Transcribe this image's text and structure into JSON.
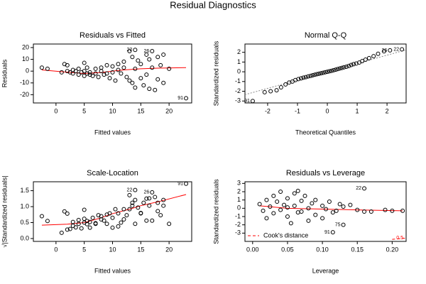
{
  "title": "Residual Diagnostics",
  "chart_data": [
    {
      "type": "scatter",
      "title": "Residuals vs Fitted",
      "x_label": "Fitted values",
      "y_label": "Residuals",
      "xlim": [
        -4,
        24
      ],
      "ylim": [
        -27,
        23
      ],
      "xticks": [
        0,
        5,
        10,
        15,
        20
      ],
      "yticks": [
        -20,
        -10,
        0,
        10,
        20
      ],
      "series": [
        {
          "color": "#000000",
          "x": [
            -2.5,
            -1.5,
            1,
            1.5,
            2,
            2,
            2.5,
            3,
            3,
            3.5,
            4,
            4,
            4.5,
            5,
            5,
            5,
            5.5,
            5.5,
            6,
            6,
            6.5,
            7,
            7,
            7.5,
            8,
            8,
            8.5,
            9,
            9,
            9.5,
            10,
            10,
            10.5,
            11,
            11,
            11.5,
            12,
            12,
            12.5,
            13,
            13,
            13.5,
            13.5,
            14,
            14,
            14,
            14.5,
            15,
            15,
            15.5,
            16,
            16,
            16.5,
            16.5,
            17,
            17,
            17.5,
            18,
            18,
            18.5,
            19,
            19,
            20,
            23
          ],
          "values": [
            3,
            2,
            -1,
            6,
            5,
            0,
            -1,
            1,
            -2,
            0,
            -3,
            2,
            -1,
            -4,
            0,
            7,
            -2,
            3,
            -3,
            -1,
            -4,
            2,
            -2,
            -5,
            0,
            3,
            -3,
            -2,
            5,
            -6,
            4,
            -1,
            -8,
            1,
            6,
            -2,
            3,
            8,
            -5,
            17,
            -8,
            12,
            -10,
            18,
            2,
            -14,
            9,
            6,
            -6,
            -12,
            14,
            -3,
            10,
            -15,
            17,
            3,
            -16,
            12,
            -7,
            5,
            14,
            -10,
            2,
            -23
          ]
        }
      ],
      "lines": [
        {
          "color": "#ff0000",
          "dash": "none",
          "x": [
            -2.5,
            1,
            5,
            8,
            10,
            12,
            15,
            18,
            23
          ],
          "values": [
            1,
            -0.5,
            -2,
            -1.2,
            0,
            1,
            2,
            2.5,
            3
          ]
        }
      ],
      "annotations": [
        {
          "text": "22",
          "x": 14,
          "y": 18
        },
        {
          "text": "26",
          "x": 17,
          "y": 17
        },
        {
          "text": "91",
          "x": 23,
          "y": -23
        }
      ]
    },
    {
      "type": "scatter",
      "title": "Normal Q-Q",
      "x_label": "Theoretical Quantiles",
      "y_label": "Standardized residuals",
      "xlim": [
        -2.76,
        2.64
      ],
      "ylim": [
        -3.2,
        2.85
      ],
      "xticks": [
        -2,
        -1,
        0,
        1,
        2
      ],
      "yticks": [
        -3,
        -2,
        -1,
        0,
        1,
        2
      ],
      "series": [
        {
          "color": "#000000",
          "x": [
            -2.5,
            -2.1,
            -1.9,
            -1.7,
            -1.55,
            -1.4,
            -1.28,
            -1.17,
            -1.07,
            -0.97,
            -0.88,
            -0.8,
            -0.72,
            -0.64,
            -0.56,
            -0.49,
            -0.42,
            -0.35,
            -0.28,
            -0.21,
            -0.14,
            -0.07,
            0,
            0.07,
            0.14,
            0.21,
            0.28,
            0.35,
            0.42,
            0.49,
            0.56,
            0.64,
            0.72,
            0.8,
            0.88,
            0.97,
            1.07,
            1.17,
            1.28,
            1.4,
            1.55,
            1.7,
            1.9,
            2.1,
            2.5
          ],
          "values": [
            -3.0,
            -2.1,
            -2.0,
            -1.9,
            -1.6,
            -1.3,
            -1.1,
            -1.0,
            -0.85,
            -0.75,
            -0.68,
            -0.6,
            -0.55,
            -0.48,
            -0.42,
            -0.36,
            -0.3,
            -0.25,
            -0.2,
            -0.15,
            -0.1,
            -0.05,
            0,
            0.05,
            0.1,
            0.16,
            0.22,
            0.28,
            0.34,
            0.4,
            0.46,
            0.52,
            0.6,
            0.7,
            0.78,
            0.85,
            0.95,
            1.1,
            1.25,
            1.4,
            1.6,
            1.85,
            2.1,
            2.2,
            2.3
          ]
        }
      ],
      "lines": [
        {
          "color": "#888888",
          "dash": "2,2",
          "x": [
            -2.76,
            2.64
          ],
          "values": [
            -2.35,
            2.25
          ]
        }
      ],
      "annotations": [
        {
          "text": "91",
          "x": -2.5,
          "y": -3.0
        },
        {
          "text": "22",
          "x": 2.5,
          "y": 2.3
        },
        {
          "text": "26",
          "x": 2.1,
          "y": 2.2
        }
      ]
    },
    {
      "type": "scatter",
      "title": "Scale-Location",
      "x_label": "Fitted values",
      "y_label": "√|Standardized residuals|",
      "xlim": [
        -4,
        24
      ],
      "ylim": [
        -0.09,
        1.78
      ],
      "xticks": [
        0,
        5,
        10,
        15,
        20
      ],
      "yticks": [
        {
          "value": 0,
          "label": "0.0"
        },
        {
          "value": 0.5,
          "label": "0.5"
        },
        {
          "value": 1,
          "label": "1.0"
        },
        {
          "value": 1.5,
          "label": "1.5"
        }
      ],
      "series": [
        {
          "color": "#000000",
          "x": [
            -2.5,
            -1.5,
            1,
            1.5,
            2,
            2,
            2.5,
            3,
            3,
            3.5,
            4,
            4,
            4.5,
            5,
            5,
            5,
            5.5,
            5.5,
            6,
            6,
            6.5,
            7,
            7,
            7.5,
            8,
            8,
            8.5,
            9,
            9,
            9.5,
            10,
            10,
            10.5,
            11,
            11,
            11.5,
            12,
            12,
            12.5,
            13,
            13,
            13.5,
            13.5,
            14,
            14,
            14,
            14.5,
            15,
            15,
            15.5,
            16,
            16,
            16.5,
            16.5,
            17,
            17,
            17.5,
            18,
            18,
            18.5,
            19,
            19,
            20,
            23
          ],
          "values": [
            0.7,
            0.55,
            0.18,
            0.85,
            0.78,
            0.28,
            0.3,
            0.52,
            0.4,
            0.35,
            0.58,
            0.46,
            0.32,
            0.62,
            0.5,
            0.9,
            0.45,
            0.55,
            0.52,
            0.34,
            0.65,
            0.46,
            0.48,
            0.73,
            0.7,
            0.6,
            0.56,
            0.46,
            0.75,
            0.79,
            0.65,
            0.34,
            0.92,
            0.38,
            0.79,
            0.5,
            0.6,
            0.92,
            0.73,
            1.36,
            0.92,
            1.12,
            1.03,
            1.52,
            0.46,
            1.21,
            0.97,
            0.79,
            0.8,
            1.12,
            1.25,
            0.56,
            1.03,
            1.26,
            1.45,
            0.56,
            1.3,
            1.12,
            0.86,
            0.73,
            1.21,
            1.03,
            0.46,
            1.72
          ]
        }
      ],
      "lines": [
        {
          "color": "#ff0000",
          "dash": "none",
          "x": [
            -2.5,
            2,
            5,
            8,
            10,
            13,
            15,
            18,
            23
          ],
          "values": [
            0.42,
            0.45,
            0.5,
            0.65,
            0.78,
            0.92,
            1.03,
            1.15,
            1.38
          ]
        }
      ],
      "annotations": [
        {
          "text": "22",
          "x": 14,
          "y": 1.52
        },
        {
          "text": "26",
          "x": 17,
          "y": 1.45
        },
        {
          "text": "91",
          "x": 23,
          "y": 1.72
        }
      ]
    },
    {
      "type": "scatter",
      "title": "Residuals vs Leverage",
      "x_label": "Leverage",
      "y_label": "Standardized residuals",
      "xlim": [
        -0.011,
        0.22
      ],
      "ylim": [
        -4.0,
        3.2
      ],
      "xticks": [
        {
          "value": 0,
          "label": "0.00"
        },
        {
          "value": 0.05,
          "label": "0.05"
        },
        {
          "value": 0.1,
          "label": "0.10"
        },
        {
          "value": 0.15,
          "label": "0.15"
        },
        {
          "value": 0.2,
          "label": "0.20"
        }
      ],
      "yticks": [
        -3,
        -2,
        -1,
        0,
        1,
        2,
        3
      ],
      "series": [
        {
          "color": "#000000",
          "x": [
            0.01,
            0.015,
            0.02,
            0.02,
            0.025,
            0.03,
            0.03,
            0.035,
            0.04,
            0.04,
            0.045,
            0.05,
            0.05,
            0.05,
            0.055,
            0.06,
            0.06,
            0.065,
            0.065,
            0.07,
            0.07,
            0.075,
            0.08,
            0.08,
            0.085,
            0.09,
            0.09,
            0.1,
            0.1,
            0.105,
            0.11,
            0.115,
            0.12,
            0.125,
            0.13,
            0.14,
            0.15,
            0.16,
            0.17,
            0.19,
            0.2,
            0.215,
            0.115,
            0.16,
            0.13
          ],
          "values": [
            0.5,
            -0.3,
            1.0,
            -1.2,
            0.2,
            1.5,
            -0.6,
            0.8,
            2.0,
            -0.2,
            0.4,
            1.2,
            -1.0,
            0.1,
            -1.8,
            1.8,
            0.3,
            -0.5,
            2.1,
            0.9,
            -0.4,
            1.5,
            0.0,
            -1.5,
            0.6,
            1.0,
            -0.8,
            -1.2,
            0.3,
            -0.1,
            0.8,
            -2.9,
            -0.3,
            0.5,
            0.2,
            0.4,
            -0.2,
            2.4,
            -0.4,
            -0.2,
            -0.3,
            -0.3,
            -0.5,
            -0.4,
            -2.0
          ]
        }
      ],
      "lines": [
        {
          "color": "#ff0000",
          "dash": "none",
          "x": [
            0.01,
            0.05,
            0.1,
            0.15,
            0.215
          ],
          "values": [
            0.3,
            0,
            -0.1,
            -0.2,
            -0.3
          ]
        },
        {
          "name": "Cook's distance",
          "color": "#ff0000",
          "dash": "4,3",
          "x": [
            0.2,
            0.22
          ],
          "values": [
            -3.75,
            -3.6
          ]
        }
      ],
      "legend": "bottom-left",
      "annotations": [
        {
          "text": "22",
          "x": 0.16,
          "y": 2.4
        },
        {
          "text": "91",
          "x": 0.115,
          "y": -2.9
        },
        {
          "text": "75",
          "x": 0.13,
          "y": -2.0
        },
        {
          "text": "0.5",
          "x": 0.22,
          "y": -3.6,
          "color": "#ff0000"
        }
      ]
    }
  ]
}
